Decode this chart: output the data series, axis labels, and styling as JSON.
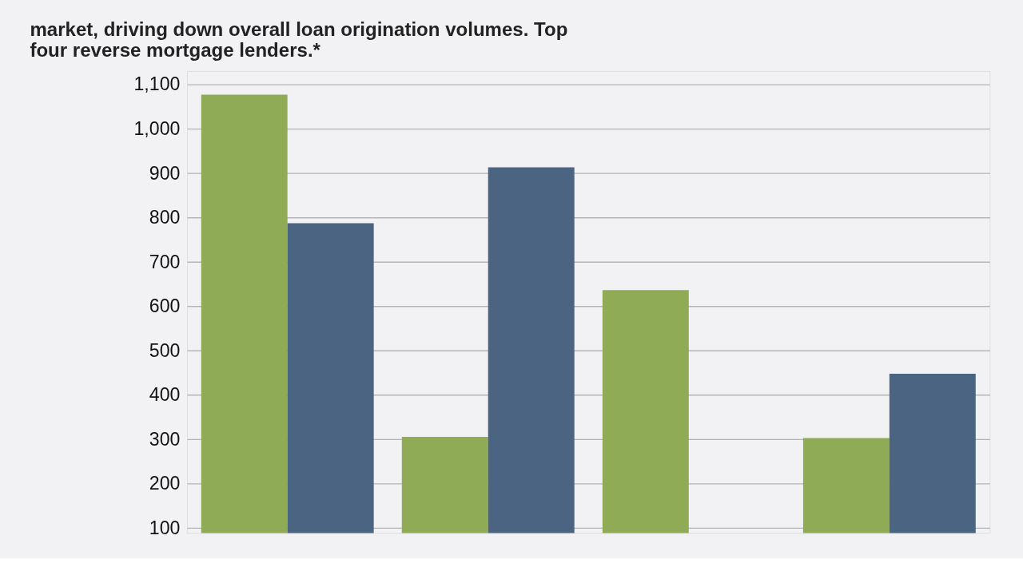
{
  "chart_data": {
    "type": "bar",
    "title": [
      "market, driving down overall loan origination volumes. Top",
      "four reverse mortgage lenders.*"
    ],
    "categories": [
      null,
      null,
      null,
      null
    ],
    "series": [
      {
        "color": "#8fab55",
        "values": [
          1077,
          305,
          636,
          302
        ]
      },
      {
        "color": "#4a6482",
        "values": [
          787,
          913,
          null,
          447
        ]
      }
    ],
    "ylim": [
      88,
      1130
    ],
    "yticks": [
      100,
      200,
      300,
      400,
      500,
      600,
      700,
      800,
      900,
      {
        "value": 1000,
        "label": "1,000"
      },
      {
        "value": 1100,
        "label": "1,100"
      }
    ],
    "grid": "y",
    "tick_labels": "y",
    "legend": false
  }
}
